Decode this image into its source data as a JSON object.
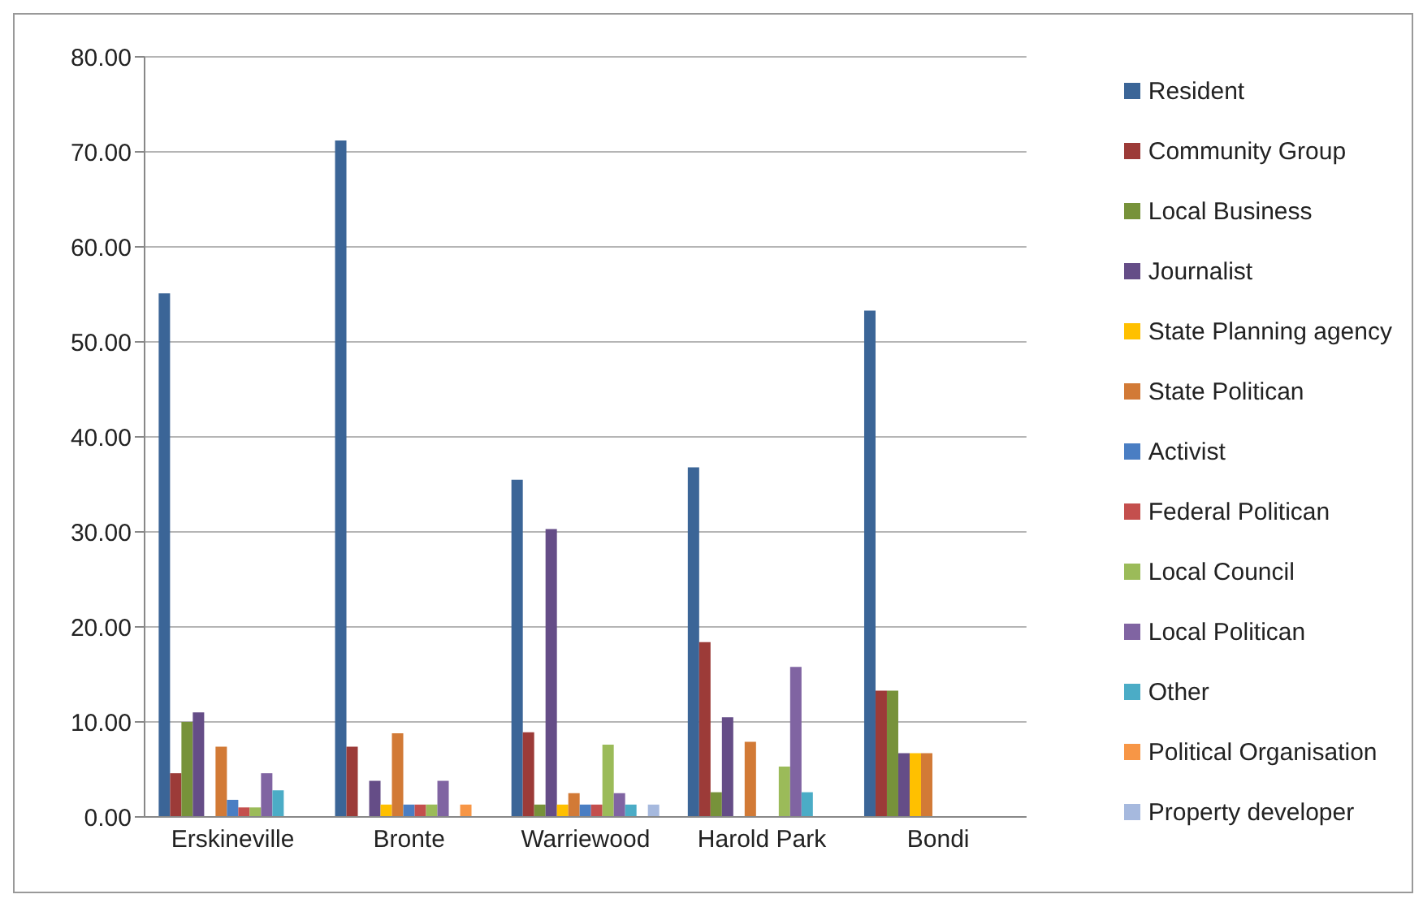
{
  "chart_data": {
    "type": "bar",
    "categories": [
      "Erskineville",
      "Bronte",
      "Warriewood",
      "Harold Park",
      "Bondi"
    ],
    "series": [
      {
        "name": "Resident",
        "color": "#3b6597",
        "values": [
          55.1,
          71.2,
          35.5,
          36.8,
          53.3
        ]
      },
      {
        "name": "Community Group",
        "color": "#9c3b38",
        "values": [
          4.6,
          7.4,
          8.9,
          18.4,
          13.3
        ]
      },
      {
        "name": "Local Business",
        "color": "#77923a",
        "values": [
          10.0,
          0,
          1.3,
          2.6,
          13.3
        ]
      },
      {
        "name": "Journalist",
        "color": "#654d87",
        "values": [
          11.0,
          3.8,
          30.3,
          10.5,
          6.7
        ]
      },
      {
        "name": "State Planning agency",
        "color": "#ffc000",
        "values": [
          0,
          1.3,
          1.3,
          0,
          6.7
        ]
      },
      {
        "name": "State Politican",
        "color": "#d27a36",
        "values": [
          7.4,
          8.8,
          2.5,
          7.9,
          6.7
        ]
      },
      {
        "name": "Activist",
        "color": "#4a7ec3",
        "values": [
          1.8,
          1.3,
          1.3,
          0,
          0
        ]
      },
      {
        "name": "Federal Politican",
        "color": "#c44f4d",
        "values": [
          1.0,
          1.3,
          1.3,
          0,
          0
        ]
      },
      {
        "name": "Local Council",
        "color": "#9bbb59",
        "values": [
          1.0,
          1.3,
          7.6,
          5.3,
          0
        ]
      },
      {
        "name": "Local Politican",
        "color": "#8064a2",
        "values": [
          4.6,
          3.8,
          2.5,
          15.8,
          0
        ]
      },
      {
        "name": "Other",
        "color": "#4bacc6",
        "values": [
          2.8,
          0,
          1.3,
          2.6,
          0
        ]
      },
      {
        "name": "Political Organisation",
        "color": "#f79646",
        "values": [
          0,
          1.3,
          0,
          0,
          0
        ]
      },
      {
        "name": "Property developer",
        "color": "#a6b9de",
        "values": [
          0,
          0,
          1.3,
          0,
          0
        ]
      }
    ],
    "ylim": [
      0,
      80
    ],
    "yticks": [
      {
        "value": 0,
        "label": "0.00"
      },
      {
        "value": 10,
        "label": "10.00"
      },
      {
        "value": 20,
        "label": "20.00"
      },
      {
        "value": 30,
        "label": "30.00"
      },
      {
        "value": 40,
        "label": "40.00"
      },
      {
        "value": 50,
        "label": "50.00"
      },
      {
        "value": 60,
        "label": "60.00"
      },
      {
        "value": 70,
        "label": "70.00"
      },
      {
        "value": 80,
        "label": "80.00"
      }
    ],
    "grid": "y",
    "legend": "right"
  }
}
